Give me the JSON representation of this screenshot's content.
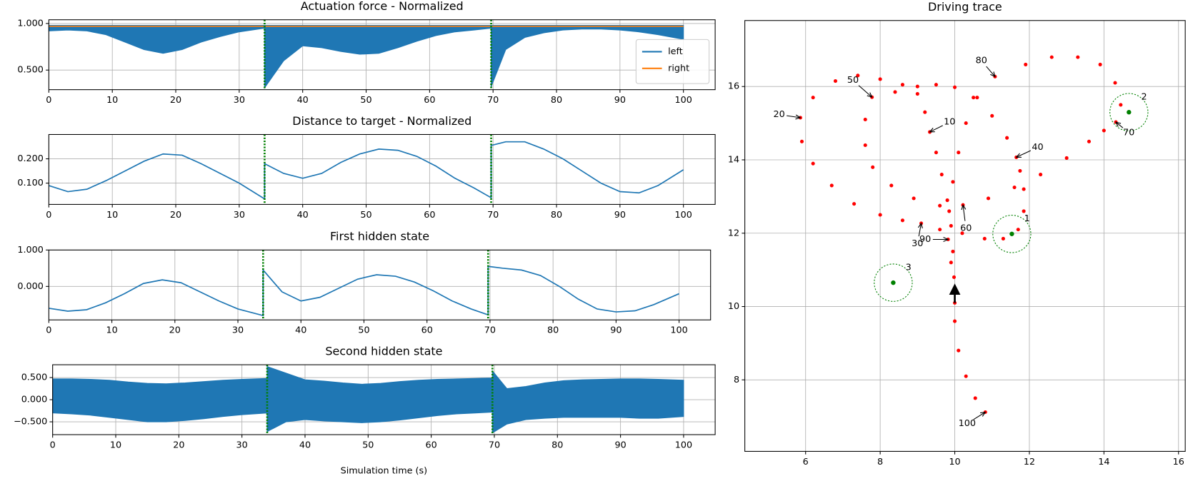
{
  "chart_data": [
    {
      "type": "line",
      "title": "Actuation force - Normalized",
      "x": [
        0,
        3,
        6,
        9,
        12,
        15,
        18,
        21,
        24,
        27,
        30,
        34,
        34,
        37,
        40,
        43,
        46,
        49,
        52,
        55,
        58,
        61,
        64,
        67,
        69.7,
        69.7,
        72,
        75,
        78,
        81,
        84,
        87,
        90,
        93,
        96,
        100
      ],
      "xlim": [
        0,
        105
      ],
      "xticks": [
        0,
        10,
        20,
        30,
        40,
        50,
        60,
        70,
        80,
        90,
        100
      ],
      "ylim": [
        0.29,
        1.04
      ],
      "yticks": [
        {
          "value": 0.5,
          "label": "0.500"
        },
        {
          "value": 1,
          "label": "1.000"
        }
      ],
      "grid": true,
      "legend": "lower right",
      "vlines": [
        34,
        69.7
      ],
      "vline_color": "#008000",
      "series": [
        {
          "name": "left",
          "color": "#1f77b4",
          "values": [
            0.92,
            0.93,
            0.92,
            0.88,
            0.8,
            0.72,
            0.68,
            0.72,
            0.8,
            0.86,
            0.91,
            0.95,
            0.31,
            0.6,
            0.76,
            0.74,
            0.7,
            0.67,
            0.68,
            0.74,
            0.81,
            0.87,
            0.91,
            0.93,
            0.95,
            0.32,
            0.72,
            0.85,
            0.9,
            0.93,
            0.94,
            0.94,
            0.93,
            0.91,
            0.88,
            0.83
          ],
          "upper": [
            0.98,
            0.98,
            0.98,
            0.98,
            0.98,
            0.98,
            0.98,
            0.98,
            0.98,
            0.98,
            0.98,
            0.98,
            0.98,
            0.98,
            0.98,
            0.98,
            0.98,
            0.98,
            0.98,
            0.98,
            0.98,
            0.98,
            0.98,
            0.98,
            0.98,
            0.98,
            0.98,
            0.98,
            0.98,
            0.98,
            0.98,
            0.98,
            0.98,
            0.98,
            0.98,
            0.98
          ]
        },
        {
          "name": "right",
          "color": "#ff7f0e",
          "values": [
            0.97,
            0.97,
            0.97,
            0.97,
            0.97,
            0.97,
            0.97,
            0.97,
            0.97,
            0.97,
            0.97,
            0.97,
            0.97,
            0.97,
            0.97,
            0.97,
            0.97,
            0.97,
            0.97,
            0.97,
            0.97,
            0.97,
            0.97,
            0.97,
            0.97,
            0.97,
            0.97,
            0.97,
            0.97,
            0.97,
            0.97,
            0.97,
            0.97,
            0.97,
            0.97,
            0.97
          ]
        }
      ]
    },
    {
      "type": "line",
      "title": "Distance to target - Normalized",
      "x": [
        0,
        3,
        6,
        9,
        12,
        15,
        18,
        21,
        24,
        27,
        30,
        34,
        34,
        37,
        40,
        43,
        46,
        49,
        52,
        55,
        58,
        61,
        64,
        67,
        69.7,
        69.7,
        72,
        75,
        78,
        81,
        84,
        87,
        90,
        93,
        96,
        100
      ],
      "xlim": [
        0,
        105
      ],
      "xticks": [
        0,
        10,
        20,
        30,
        40,
        50,
        60,
        70,
        80,
        90,
        100
      ],
      "ylim": [
        0.0125,
        0.3
      ],
      "yticks": [
        {
          "value": 0.1,
          "label": "0.100"
        },
        {
          "value": 0.2,
          "label": "0.200"
        }
      ],
      "grid": true,
      "vlines": [
        34,
        69.7
      ],
      "vline_color": "#008000",
      "series": [
        {
          "color": "#1f77b4",
          "values": [
            0.09,
            0.065,
            0.075,
            0.11,
            0.15,
            0.19,
            0.22,
            0.215,
            0.18,
            0.14,
            0.1,
            0.035,
            0.18,
            0.14,
            0.12,
            0.14,
            0.185,
            0.22,
            0.24,
            0.235,
            0.21,
            0.17,
            0.12,
            0.08,
            0.04,
            0.255,
            0.27,
            0.27,
            0.24,
            0.2,
            0.15,
            0.1,
            0.065,
            0.06,
            0.09,
            0.155
          ]
        }
      ]
    },
    {
      "type": "line",
      "title": "First hidden state",
      "x": [
        0,
        3,
        6,
        9,
        12,
        15,
        18,
        21,
        24,
        27,
        30,
        34,
        34,
        37,
        40,
        43,
        46,
        49,
        52,
        55,
        58,
        61,
        64,
        67,
        69.7,
        69.7,
        72,
        75,
        78,
        81,
        84,
        87,
        90,
        93,
        96,
        100
      ],
      "xlim": [
        0,
        105
      ],
      "xticks": [
        0,
        10,
        20,
        30,
        40,
        50,
        60,
        70,
        80,
        90,
        100
      ],
      "ylim": [
        -0.92,
        1.0
      ],
      "yticks": [
        {
          "value": 0,
          "label": "0.000"
        },
        {
          "value": 1,
          "label": "1.000"
        }
      ],
      "grid": true,
      "vlines": [
        34,
        69.7
      ],
      "vline_color": "#008000",
      "series": [
        {
          "color": "#1f77b4",
          "values": [
            -0.6,
            -0.68,
            -0.64,
            -0.45,
            -0.2,
            0.08,
            0.18,
            0.1,
            -0.15,
            -0.4,
            -0.62,
            -0.8,
            0.45,
            -0.15,
            -0.4,
            -0.3,
            -0.05,
            0.2,
            0.32,
            0.28,
            0.12,
            -0.12,
            -0.4,
            -0.62,
            -0.78,
            0.55,
            0.5,
            0.45,
            0.3,
            0,
            -0.35,
            -0.62,
            -0.7,
            -0.67,
            -0.5,
            -0.2
          ]
        }
      ]
    },
    {
      "type": "line",
      "title": "Second hidden state",
      "xlabel": "Simulation time (s)",
      "x": [
        0,
        3,
        6,
        9,
        12,
        15,
        18,
        21,
        24,
        27,
        30,
        34,
        34,
        37,
        40,
        43,
        46,
        49,
        52,
        55,
        58,
        61,
        64,
        67,
        69.7,
        69.7,
        72,
        75,
        78,
        81,
        84,
        87,
        90,
        93,
        96,
        100
      ],
      "xlim": [
        0,
        105
      ],
      "xticks": [
        0,
        10,
        20,
        30,
        40,
        50,
        60,
        70,
        80,
        90,
        100
      ],
      "ylim": [
        -0.79,
        0.79
      ],
      "yticks": [
        {
          "value": -0.5,
          "label": "−0.500"
        },
        {
          "value": 0,
          "label": "0.000"
        },
        {
          "value": 0.5,
          "label": "0.500"
        }
      ],
      "grid": true,
      "vlines": [
        34,
        69.7
      ],
      "vline_color": "#008000",
      "series": [
        {
          "color": "#1f77b4",
          "values": [
            -0.3,
            -0.32,
            -0.35,
            -0.4,
            -0.45,
            -0.5,
            -0.5,
            -0.47,
            -0.43,
            -0.38,
            -0.34,
            -0.3,
            -0.72,
            -0.5,
            -0.45,
            -0.48,
            -0.5,
            -0.52,
            -0.5,
            -0.46,
            -0.41,
            -0.36,
            -0.32,
            -0.3,
            -0.28,
            -0.75,
            -0.55,
            -0.45,
            -0.42,
            -0.4,
            -0.4,
            -0.4,
            -0.4,
            -0.42,
            -0.42,
            -0.38
          ],
          "upper": [
            0.47,
            0.47,
            0.46,
            0.44,
            0.4,
            0.37,
            0.36,
            0.38,
            0.41,
            0.44,
            0.46,
            0.48,
            0.75,
            0.6,
            0.45,
            0.42,
            0.38,
            0.35,
            0.37,
            0.41,
            0.44,
            0.46,
            0.47,
            0.48,
            0.49,
            0.65,
            0.25,
            0.3,
            0.38,
            0.43,
            0.45,
            0.46,
            0.47,
            0.47,
            0.46,
            0.44
          ]
        }
      ]
    },
    {
      "type": "scatter",
      "title": "Driving trace",
      "xlim": [
        4.37,
        16.18
      ],
      "xticks": [
        6,
        8,
        10,
        12,
        14,
        16
      ],
      "ylim": [
        6.05,
        17.8
      ],
      "yticks": [
        8,
        10,
        12,
        14,
        16
      ],
      "grid": true,
      "trace": {
        "color": "#ff0000",
        "x": [
          10.0,
          9.98,
          9.95,
          9.9,
          9.8,
          9.65,
          9.5,
          9.33,
          9.2,
          9.0,
          8.6,
          8.0,
          7.4,
          6.8,
          6.2,
          5.86,
          5.9,
          6.2,
          6.7,
          7.3,
          8.0,
          8.6,
          9.1,
          9.6,
          10.2,
          10.8,
          11.3,
          11.7,
          11.85,
          11.85,
          11.75,
          11.65,
          11.4,
          11.0,
          10.5,
          10.0,
          9.5,
          9.0,
          8.4,
          7.78,
          7.6,
          7.6,
          7.8,
          8.3,
          8.9,
          9.6,
          10.22,
          10.9,
          11.6,
          12.3,
          13.0,
          13.6,
          14.0,
          14.32,
          14.45,
          14.3,
          13.9,
          13.3,
          12.6,
          11.9,
          11.08,
          10.6,
          10.3,
          10.1,
          9.95,
          9.85,
          9.82,
          9.9,
          10.0,
          10.0,
          10.1,
          10.3,
          10.55,
          10.82
        ],
        "y": [
          10.1,
          10.8,
          11.5,
          12.2,
          12.9,
          13.6,
          14.2,
          14.76,
          15.3,
          15.8,
          16.05,
          16.2,
          16.3,
          16.15,
          15.7,
          15.15,
          14.5,
          13.9,
          13.3,
          12.8,
          12.5,
          12.35,
          12.27,
          12.1,
          12.0,
          11.85,
          11.85,
          12.1,
          12.6,
          13.2,
          13.7,
          14.07,
          14.6,
          15.2,
          15.7,
          15.98,
          16.05,
          16.0,
          15.85,
          15.71,
          15.1,
          14.4,
          13.8,
          13.3,
          12.95,
          12.75,
          12.77,
          12.95,
          13.25,
          13.6,
          14.05,
          14.5,
          14.8,
          15.03,
          15.5,
          16.1,
          16.6,
          16.8,
          16.8,
          16.6,
          16.27,
          15.7,
          15.0,
          14.2,
          13.4,
          12.6,
          11.83,
          11.2,
          10.4,
          9.6,
          8.8,
          8.1,
          7.5,
          7.12
        ]
      },
      "targets": [
        {
          "label": "1",
          "x": 11.53,
          "y": 11.98,
          "radius": 0.51
        },
        {
          "label": "2",
          "x": 14.67,
          "y": 15.3,
          "radius": 0.51
        },
        {
          "label": "3",
          "x": 8.35,
          "y": 10.65,
          "radius": 0.51
        }
      ],
      "target_color": "#008000",
      "annotations": [
        {
          "text": "10",
          "x": 9.33,
          "y": 14.76
        },
        {
          "text": "20",
          "x": 5.86,
          "y": 15.15
        },
        {
          "text": "30",
          "x": 9.1,
          "y": 12.27
        },
        {
          "text": "40",
          "x": 11.65,
          "y": 14.07
        },
        {
          "text": "50",
          "x": 7.78,
          "y": 15.71
        },
        {
          "text": "60",
          "x": 10.22,
          "y": 12.77
        },
        {
          "text": "70",
          "x": 14.32,
          "y": 15.03
        },
        {
          "text": "80",
          "x": 11.08,
          "y": 16.27
        },
        {
          "text": "90",
          "x": 9.82,
          "y": 11.83
        },
        {
          "text": "100",
          "x": 10.82,
          "y": 7.12
        }
      ]
    }
  ]
}
